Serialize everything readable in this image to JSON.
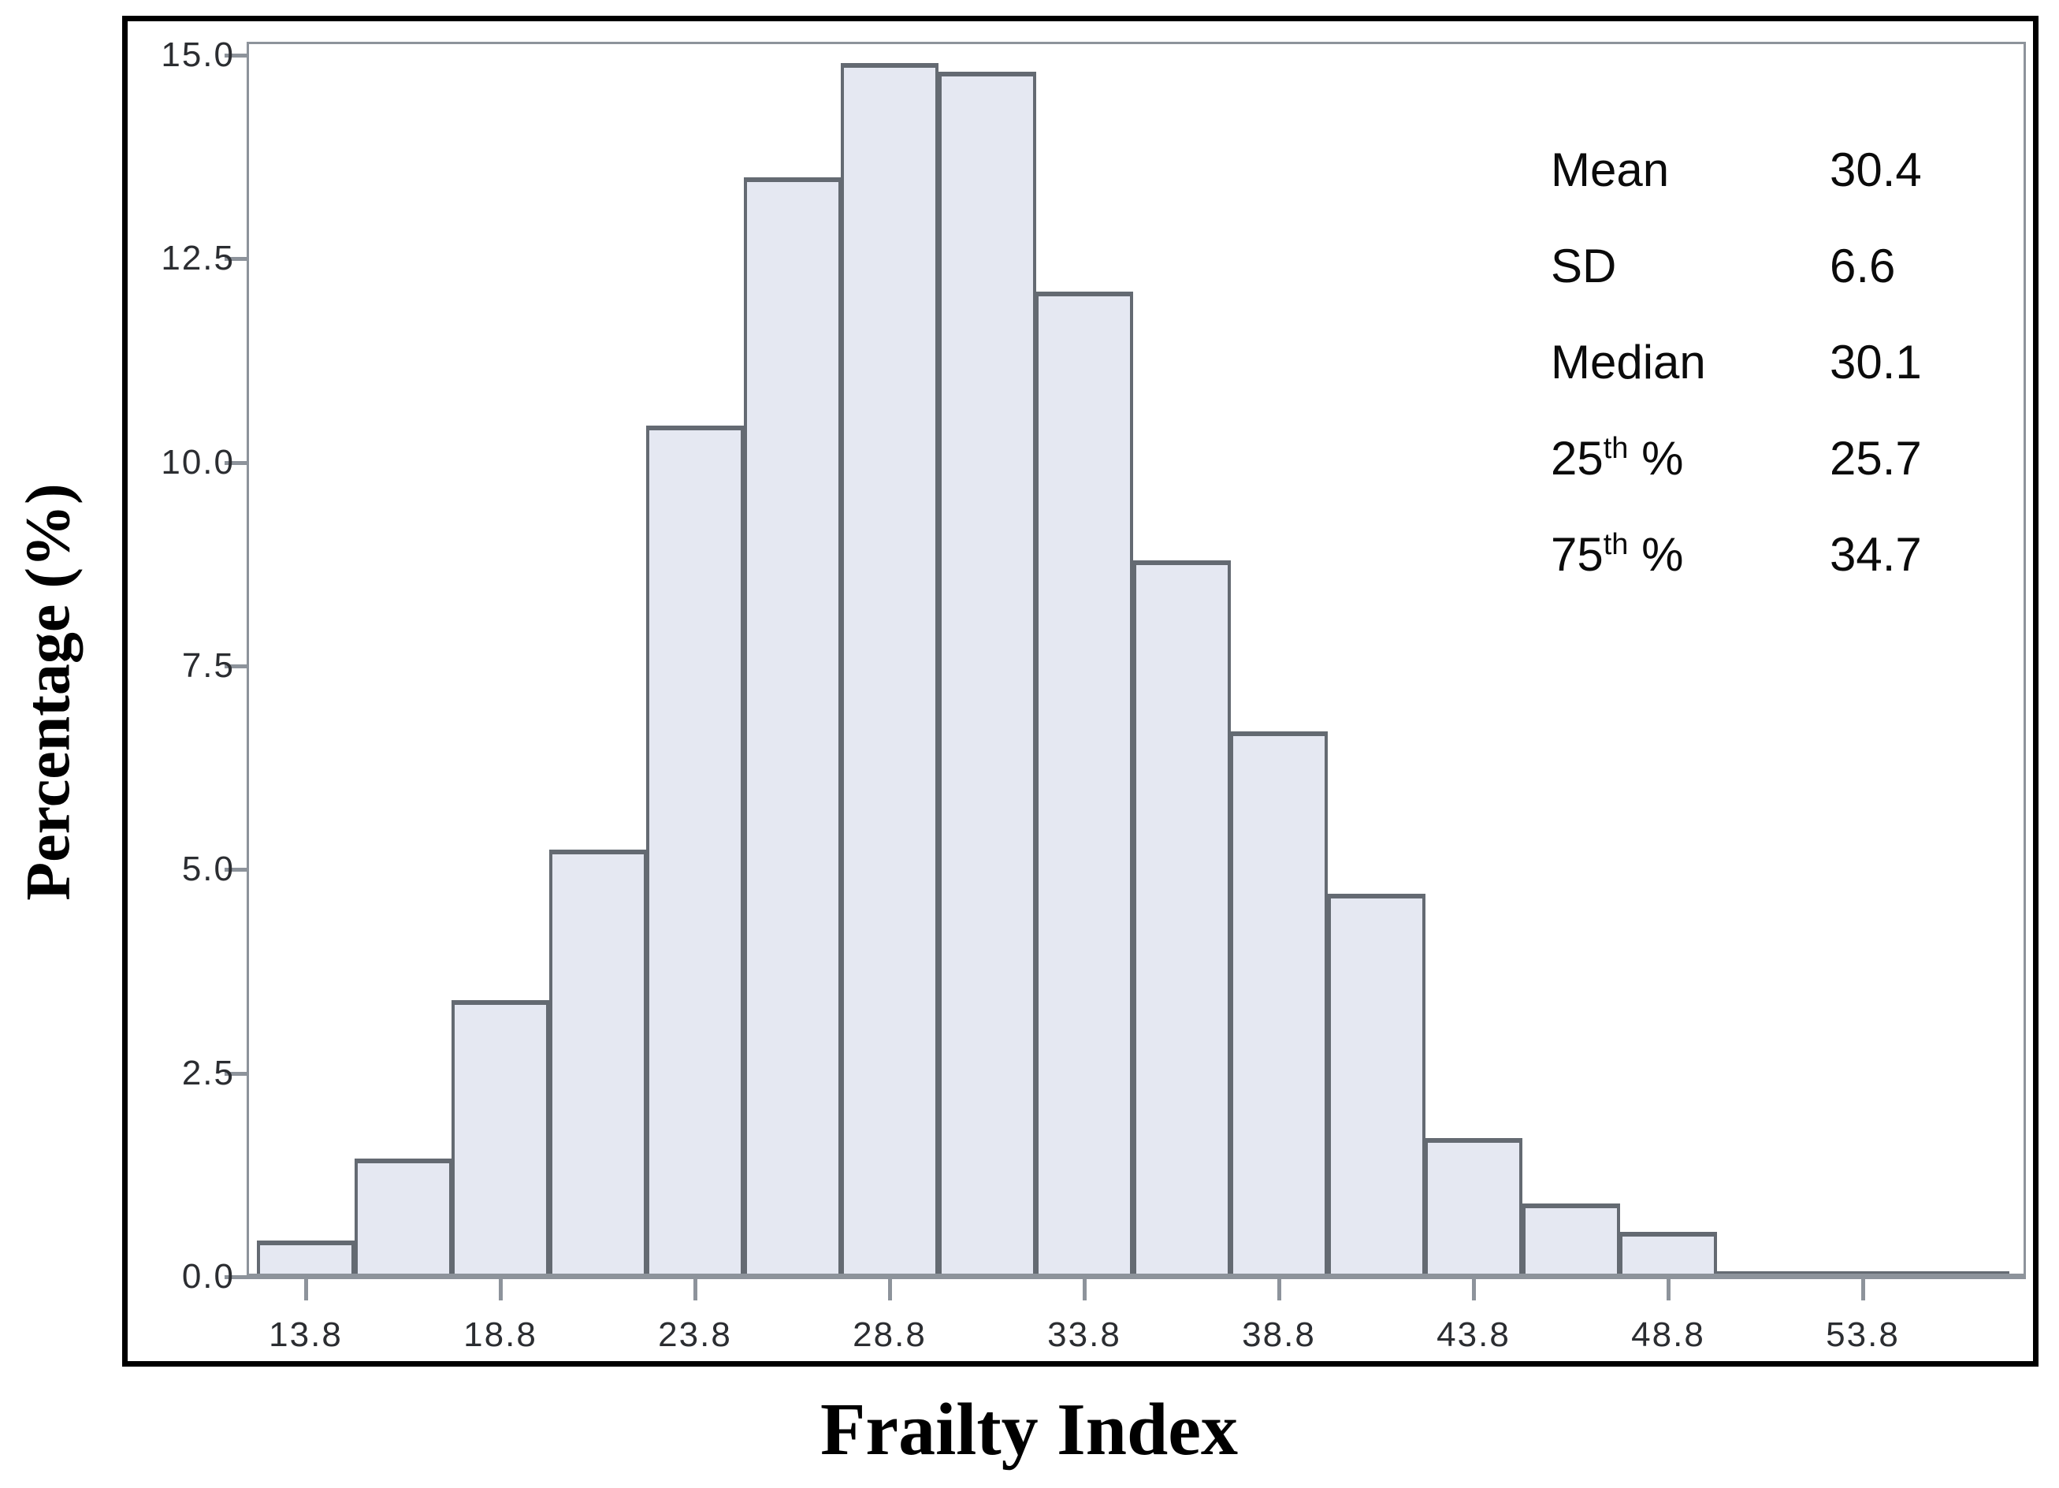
{
  "figure": {
    "x_axis_title": "Frailty Index",
    "y_axis_title": "Percentage (%)"
  },
  "stats_box": {
    "rows": [
      {
        "label": "Mean",
        "sup": "",
        "rest": "",
        "value": "30.4"
      },
      {
        "label": "SD",
        "sup": "",
        "rest": "",
        "value": "6.6"
      },
      {
        "label": "Median",
        "sup": "",
        "rest": "",
        "value": "30.1"
      },
      {
        "label": "25",
        "sup": "th",
        "rest": " %",
        "value": "25.7"
      },
      {
        "label": "75",
        "sup": "th",
        "rest": " %",
        "value": "34.7"
      }
    ]
  },
  "chart_data": {
    "type": "bar",
    "subtype": "histogram",
    "title": "",
    "xlabel": "Frailty Index",
    "ylabel": "Percentage (%)",
    "bin_width": 2.5,
    "bin_midpoints": [
      13.8,
      16.3,
      18.8,
      21.3,
      23.8,
      26.3,
      28.8,
      31.3,
      33.8,
      36.3,
      38.8,
      41.3,
      43.8,
      46.3,
      48.8,
      51.3,
      53.8,
      56.3
    ],
    "values": [
      0.45,
      1.45,
      3.4,
      5.25,
      10.45,
      13.5,
      14.9,
      14.8,
      12.1,
      8.8,
      6.7,
      4.7,
      1.7,
      0.9,
      0.55,
      0.07,
      0.07,
      0.07
    ],
    "x_tick_labels": [
      "13.8",
      "18.8",
      "23.8",
      "28.8",
      "33.8",
      "38.8",
      "43.8",
      "48.8",
      "53.8"
    ],
    "x_tick_values": [
      13.8,
      18.8,
      23.8,
      28.8,
      33.8,
      38.8,
      43.8,
      48.8,
      53.8
    ],
    "y_tick_labels": [
      "0.0",
      "2.5",
      "5.0",
      "7.5",
      "10.0",
      "12.5",
      "15.0"
    ],
    "y_tick_values": [
      0,
      2.5,
      5,
      7.5,
      10,
      12.5,
      15
    ],
    "ylim": [
      0,
      15
    ],
    "grid": false,
    "legend": false,
    "annotations": {
      "mean": 30.4,
      "sd": 6.6,
      "median": 30.1,
      "p25": 25.7,
      "p75": 34.7
    },
    "colors": {
      "bar_fill": "#e5e8f2",
      "bar_border": "#646a72",
      "axis": "#8d939b",
      "tick_label": "#2b2d31",
      "frame": "#000000",
      "text": "#0b0b0b"
    }
  }
}
